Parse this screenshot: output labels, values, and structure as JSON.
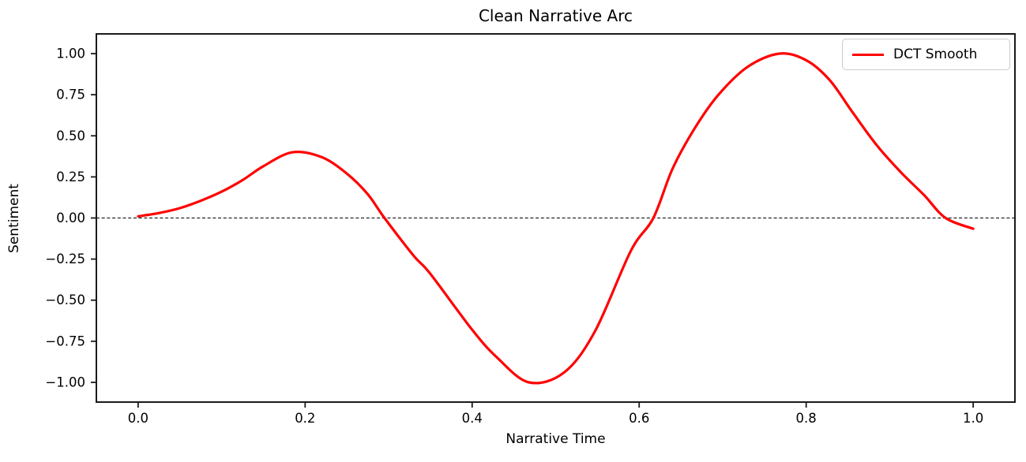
{
  "figure": {
    "title": "Clean Narrative Arc",
    "background_color": "#ffffff",
    "text_color": "#000000",
    "spine_color": "#1a1a1a"
  },
  "legend": {
    "label": "DCT Smooth",
    "line_color": "#ff0000",
    "position": "upper right"
  },
  "chart_data": {
    "type": "line",
    "title": "Clean Narrative Arc",
    "xlabel": "Narrative Time",
    "ylabel": "Sentiment",
    "xlim": [
      -0.05,
      1.05
    ],
    "ylim": [
      -1.12,
      1.12
    ],
    "grid": false,
    "x_ticks": [
      0.0,
      0.2,
      0.4,
      0.6,
      0.8,
      1.0
    ],
    "x_tick_labels": [
      "0.0",
      "0.2",
      "0.4",
      "0.6",
      "0.8",
      "1.0"
    ],
    "y_ticks": [
      1.0,
      0.75,
      0.5,
      0.25,
      0.0,
      -0.25,
      -0.5,
      -0.75,
      -1.0
    ],
    "y_tick_labels": [
      "1.00",
      "0.75",
      "0.50",
      "0.25",
      "0.00",
      "−0.25",
      "−0.50",
      "−0.75",
      "−1.00"
    ],
    "zero_line": {
      "y": 0,
      "style": "dashed",
      "color": "#000000",
      "width": 1
    },
    "legend_position": "upper right",
    "series": [
      {
        "name": "DCT Smooth",
        "color": "#ff0000",
        "line_width": 3.2,
        "x": [
          0.0,
          0.025,
          0.05,
          0.075,
          0.1,
          0.125,
          0.15,
          0.185,
          0.22,
          0.25,
          0.275,
          0.295,
          0.33,
          0.35,
          0.4,
          0.43,
          0.468,
          0.51,
          0.547,
          0.59,
          0.617,
          0.64,
          0.667,
          0.695,
          0.73,
          0.768,
          0.8,
          0.828,
          0.856,
          0.885,
          0.913,
          0.941,
          0.967,
          1.0
        ],
        "y": [
          0.01,
          0.03,
          0.06,
          0.105,
          0.16,
          0.23,
          0.315,
          0.4,
          0.37,
          0.27,
          0.145,
          0.0,
          -0.23,
          -0.34,
          -0.68,
          -0.85,
          -1.0,
          -0.94,
          -0.69,
          -0.2,
          0.0,
          0.3,
          0.55,
          0.75,
          0.92,
          1.0,
          0.96,
          0.84,
          0.64,
          0.44,
          0.28,
          0.14,
          0.0,
          -0.065
        ]
      }
    ]
  }
}
